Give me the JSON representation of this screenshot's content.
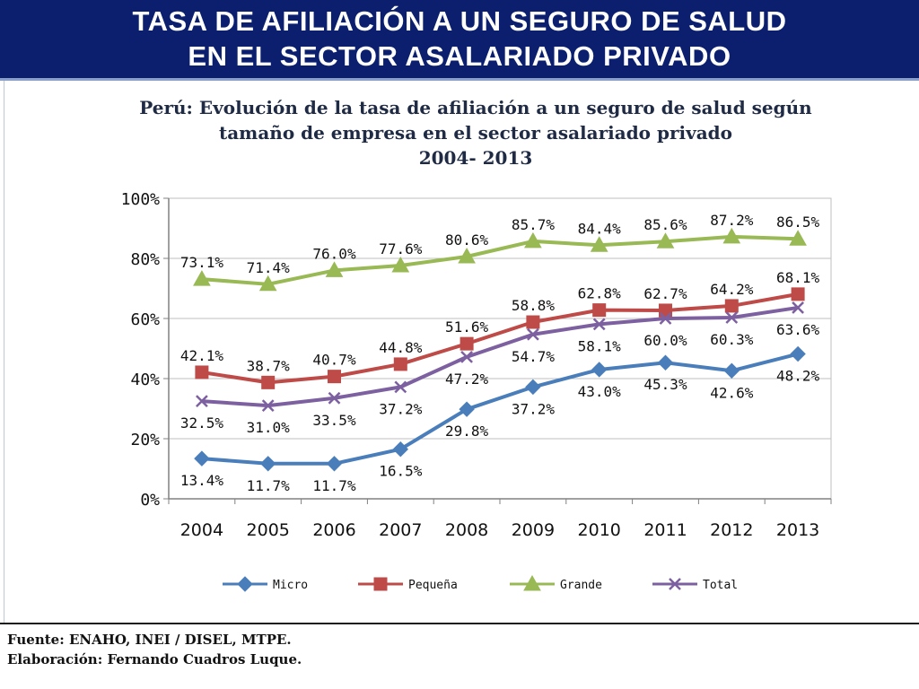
{
  "header": {
    "title_line1": "TASA DE AFILIACIÓN A UN SEGURO DE SALUD",
    "title_line2": "EN EL SECTOR ASALARIADO PRIVADO"
  },
  "chart_data": {
    "type": "line",
    "title": "Perú: Evolución de la tasa de afiliación a un seguro de salud según tamaño de empresa en el sector asalariado privado 2004- 2013",
    "title_lines": [
      "Perú: Evolución de la tasa de afiliación a un seguro de salud según",
      "tamaño de empresa en el sector asalariado privado",
      "2004- 2013"
    ],
    "categories": [
      "2004",
      "2005",
      "2006",
      "2007",
      "2008",
      "2009",
      "2010",
      "2011",
      "2012",
      "2013"
    ],
    "ylim": [
      0,
      100
    ],
    "yticks": [
      "0%",
      "20%",
      "40%",
      "60%",
      "80%",
      "100%"
    ],
    "grid": true,
    "legend_position": "bottom",
    "xlabel": "",
    "ylabel": "",
    "series": [
      {
        "name": "Micro",
        "marker": "diamond",
        "color": "#4a7ebb",
        "label_position": "below",
        "values": [
          13.4,
          11.7,
          11.7,
          16.5,
          29.8,
          37.2,
          43.0,
          45.3,
          42.6,
          48.2
        ],
        "labels": [
          "13.4%",
          "11.7%",
          "11.7%",
          "16.5%",
          "29.8%",
          "37.2%",
          "43.0%",
          "45.3%",
          "42.6%",
          "48.2%"
        ]
      },
      {
        "name": "Pequeña",
        "marker": "square",
        "color": "#be4b48",
        "label_position": "above",
        "values": [
          42.1,
          38.7,
          40.7,
          44.8,
          51.6,
          58.8,
          62.8,
          62.7,
          64.2,
          68.1
        ],
        "labels": [
          "42.1%",
          "38.7%",
          "40.7%",
          "44.8%",
          "51.6%",
          "58.8%",
          "62.8%",
          "62.7%",
          "64.2%",
          "68.1%"
        ]
      },
      {
        "name": "Grande",
        "marker": "triangle",
        "color": "#98b954",
        "label_position": "above",
        "values": [
          73.1,
          71.4,
          76.0,
          77.6,
          80.6,
          85.7,
          84.4,
          85.6,
          87.2,
          86.5
        ],
        "labels": [
          "73.1%",
          "71.4%",
          "76.0%",
          "77.6%",
          "80.6%",
          "85.7%",
          "84.4%",
          "85.6%",
          "87.2%",
          "86.5%"
        ]
      },
      {
        "name": "Total",
        "marker": "x",
        "color": "#7d60a0",
        "label_position": "below",
        "values": [
          32.5,
          31.0,
          33.5,
          37.2,
          47.2,
          54.7,
          58.1,
          60.0,
          60.3,
          63.6
        ],
        "labels": [
          "32.5%",
          "31.0%",
          "33.5%",
          "37.2%",
          "47.2%",
          "54.7%",
          "58.1%",
          "60.0%",
          "60.3%",
          "63.6%"
        ]
      }
    ]
  },
  "footer": {
    "source": "Fuente: ENAHO, INEI / DISEL, MTPE.",
    "credit": "Elaboración: Fernando Cuadros Luque."
  }
}
